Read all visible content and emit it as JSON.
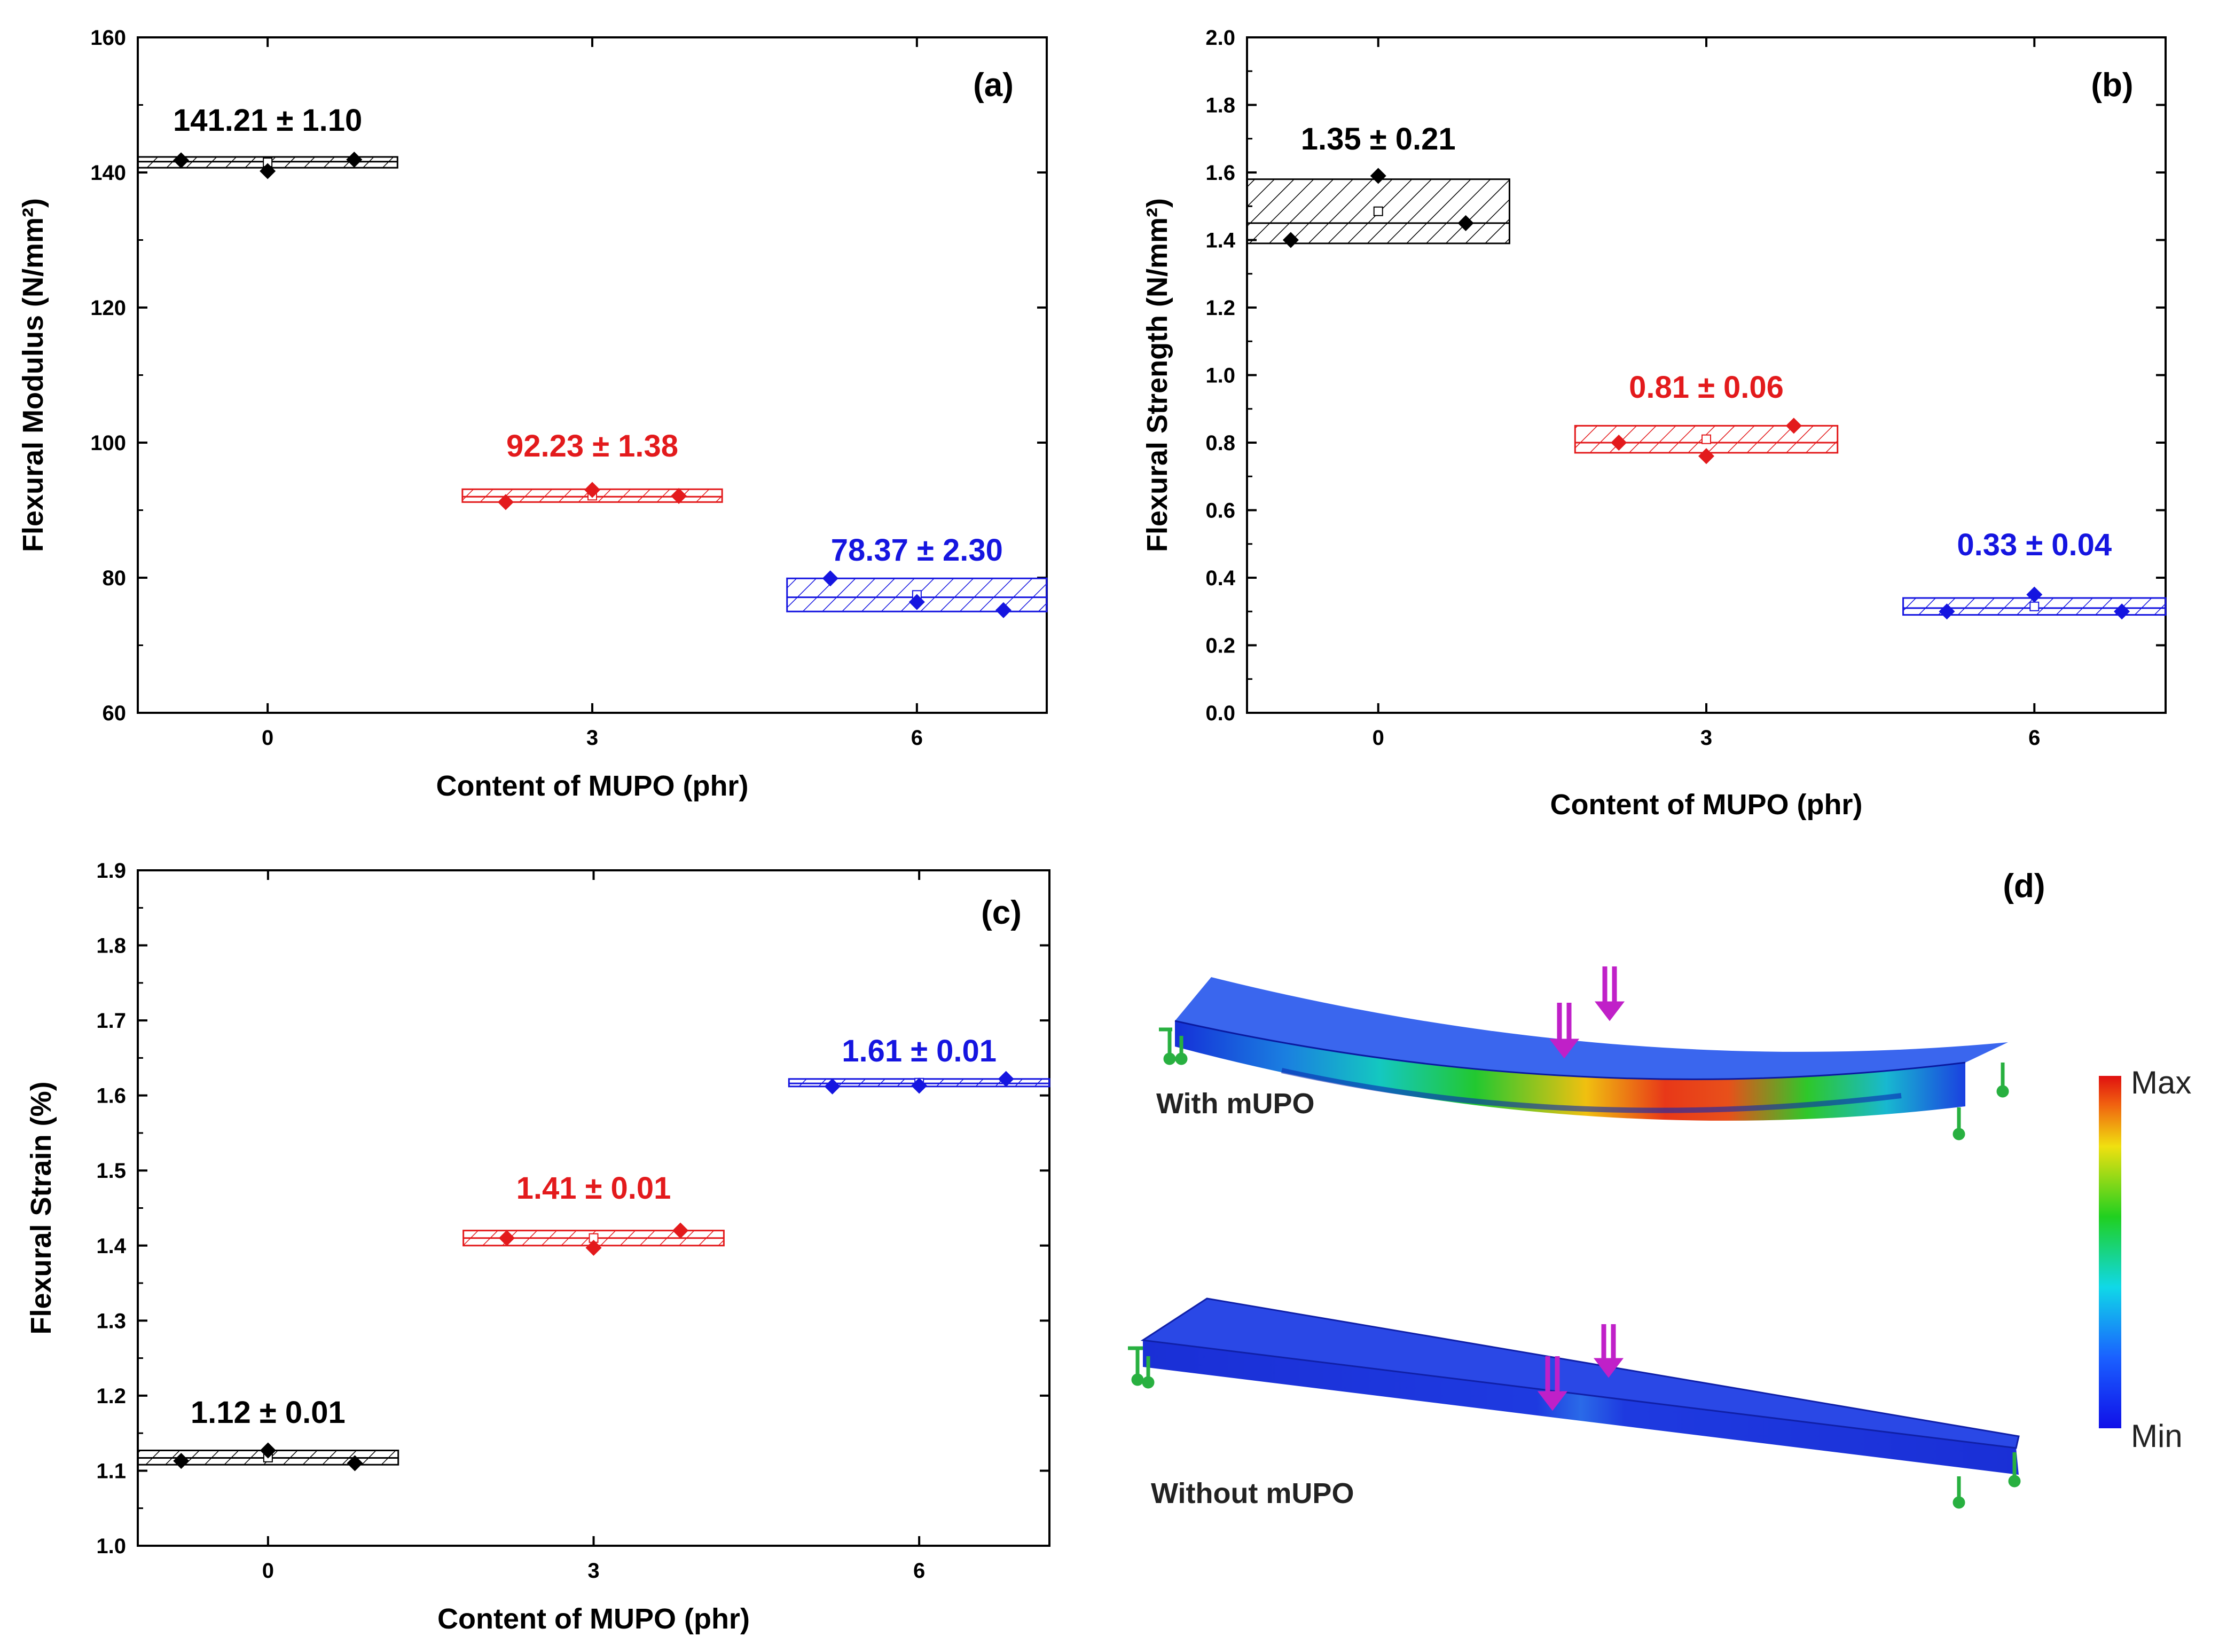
{
  "colors": {
    "c0": "#000000",
    "c3": "#e31a1c",
    "c6": "#1515e0"
  },
  "chart_data": [
    {
      "id": "a",
      "type": "box-with-points",
      "panel_label": "(a)",
      "xlabel": "Content of MUPO (phr)",
      "ylabel": "Flexural Modulus (N/mm²)",
      "ylim": [
        60,
        160
      ],
      "yticks": [
        "60",
        "80",
        "100",
        "120",
        "140",
        "160"
      ],
      "ytick_values": [
        60,
        80,
        100,
        120,
        140,
        160
      ],
      "categories": [
        "0",
        "3",
        "6"
      ],
      "series": [
        {
          "name": "0 phr",
          "color": "#000000",
          "annotation": "141.21 ± 1.10",
          "points": [
            141.8,
            140.2,
            141.9
          ],
          "box": [
            140.7,
            142.3
          ],
          "median": 141.6
        },
        {
          "name": "3 phr",
          "color": "#e31a1c",
          "annotation": "92.23 ± 1.38",
          "points": [
            91.2,
            93.0,
            92.1
          ],
          "box": [
            91.2,
            93.1
          ],
          "median": 92.0
        },
        {
          "name": "6 phr",
          "color": "#1515e0",
          "annotation": "78.37 ± 2.30",
          "points": [
            79.9,
            76.4,
            75.2
          ],
          "box": [
            75.0,
            79.9
          ],
          "median": 77.1
        }
      ]
    },
    {
      "id": "b",
      "type": "box-with-points",
      "panel_label": "(b)",
      "xlabel": "Content of MUPO (phr)",
      "ylabel": "Flexural Strength (N/mm²)",
      "ylim": [
        0.0,
        2.0
      ],
      "yticks": [
        "0.0",
        "0.2",
        "0.4",
        "0.6",
        "0.8",
        "1.0",
        "1.2",
        "1.4",
        "1.6",
        "1.8",
        "2.0"
      ],
      "ytick_values": [
        0.0,
        0.2,
        0.4,
        0.6,
        0.8,
        1.0,
        1.2,
        1.4,
        1.6,
        1.8,
        2.0
      ],
      "categories": [
        "0",
        "3",
        "6"
      ],
      "series": [
        {
          "name": "0 phr",
          "color": "#000000",
          "annotation": "1.35 ± 0.21",
          "points": [
            1.4,
            1.59,
            1.45
          ],
          "box": [
            1.39,
            1.58
          ],
          "median": 1.45
        },
        {
          "name": "3 phr",
          "color": "#e31a1c",
          "annotation": "0.81 ± 0.06",
          "points": [
            0.8,
            0.76,
            0.85
          ],
          "box": [
            0.77,
            0.85
          ],
          "median": 0.8
        },
        {
          "name": "6 phr",
          "color": "#1515e0",
          "annotation": "0.33 ± 0.04",
          "points": [
            0.3,
            0.35,
            0.3
          ],
          "box": [
            0.29,
            0.34
          ],
          "median": 0.31
        }
      ]
    },
    {
      "id": "c",
      "type": "box-with-points",
      "panel_label": "(c)",
      "xlabel": "Content of MUPO (phr)",
      "ylabel": "Flexural Strain (%)",
      "ylim": [
        1.0,
        1.9
      ],
      "yticks": [
        "1.0",
        "1.1",
        "1.2",
        "1.3",
        "1.4",
        "1.5",
        "1.6",
        "1.7",
        "1.8",
        "1.9"
      ],
      "ytick_values": [
        1.0,
        1.1,
        1.2,
        1.3,
        1.4,
        1.5,
        1.6,
        1.7,
        1.8,
        1.9
      ],
      "categories": [
        "0",
        "3",
        "6"
      ],
      "series": [
        {
          "name": "0 phr",
          "color": "#000000",
          "annotation": "1.12 ± 0.01",
          "points": [
            1.113,
            1.127,
            1.11
          ],
          "box": [
            1.108,
            1.127
          ],
          "median": 1.117
        },
        {
          "name": "3 phr",
          "color": "#e31a1c",
          "annotation": "1.41 ± 0.01",
          "points": [
            1.41,
            1.397,
            1.42
          ],
          "box": [
            1.4,
            1.42
          ],
          "median": 1.41
        },
        {
          "name": "6 phr",
          "color": "#1515e0",
          "annotation": "1.61 ± 0.01",
          "points": [
            1.612,
            1.613,
            1.622
          ],
          "box": [
            1.612,
            1.622
          ],
          "median": 1.616
        }
      ]
    }
  ],
  "panel_d": {
    "label": "(d)",
    "beam_with": "With mUPO",
    "beam_without": "Without mUPO",
    "colorbar_max": "Max",
    "colorbar_min": "Min"
  }
}
